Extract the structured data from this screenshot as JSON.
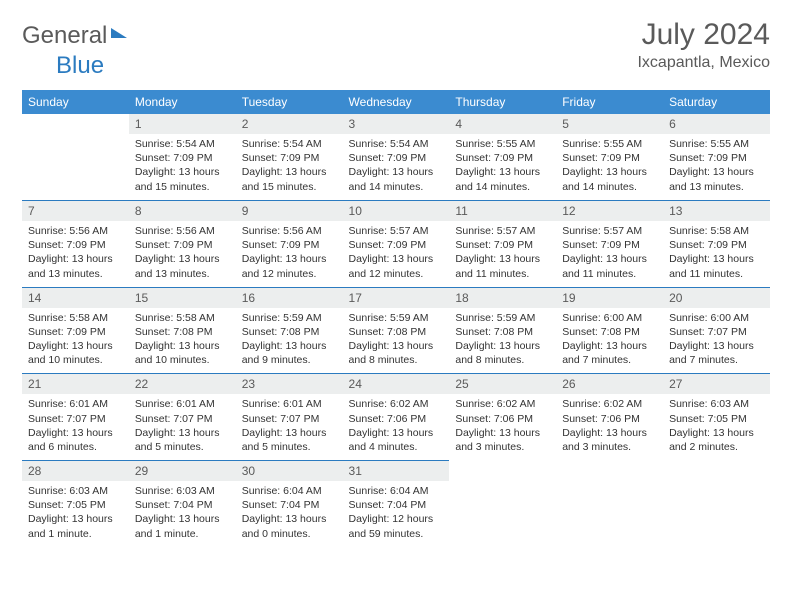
{
  "brand": {
    "name1": "General",
    "name2": "Blue"
  },
  "title": "July 2024",
  "location": "Ixcapantla, Mexico",
  "colors": {
    "header_blue": "#3b8bd0",
    "daynum_bg": "#eceeee",
    "rule_blue": "#2b7bc0",
    "text_gray": "#5a5a5a"
  },
  "daysOfWeek": [
    "Sunday",
    "Monday",
    "Tuesday",
    "Wednesday",
    "Thursday",
    "Friday",
    "Saturday"
  ],
  "weeks": [
    [
      null,
      {
        "n": "1",
        "sr": "Sunrise: 5:54 AM",
        "ss": "Sunset: 7:09 PM",
        "dl": "Daylight: 13 hours and 15 minutes."
      },
      {
        "n": "2",
        "sr": "Sunrise: 5:54 AM",
        "ss": "Sunset: 7:09 PM",
        "dl": "Daylight: 13 hours and 15 minutes."
      },
      {
        "n": "3",
        "sr": "Sunrise: 5:54 AM",
        "ss": "Sunset: 7:09 PM",
        "dl": "Daylight: 13 hours and 14 minutes."
      },
      {
        "n": "4",
        "sr": "Sunrise: 5:55 AM",
        "ss": "Sunset: 7:09 PM",
        "dl": "Daylight: 13 hours and 14 minutes."
      },
      {
        "n": "5",
        "sr": "Sunrise: 5:55 AM",
        "ss": "Sunset: 7:09 PM",
        "dl": "Daylight: 13 hours and 14 minutes."
      },
      {
        "n": "6",
        "sr": "Sunrise: 5:55 AM",
        "ss": "Sunset: 7:09 PM",
        "dl": "Daylight: 13 hours and 13 minutes."
      }
    ],
    [
      {
        "n": "7",
        "sr": "Sunrise: 5:56 AM",
        "ss": "Sunset: 7:09 PM",
        "dl": "Daylight: 13 hours and 13 minutes."
      },
      {
        "n": "8",
        "sr": "Sunrise: 5:56 AM",
        "ss": "Sunset: 7:09 PM",
        "dl": "Daylight: 13 hours and 13 minutes."
      },
      {
        "n": "9",
        "sr": "Sunrise: 5:56 AM",
        "ss": "Sunset: 7:09 PM",
        "dl": "Daylight: 13 hours and 12 minutes."
      },
      {
        "n": "10",
        "sr": "Sunrise: 5:57 AM",
        "ss": "Sunset: 7:09 PM",
        "dl": "Daylight: 13 hours and 12 minutes."
      },
      {
        "n": "11",
        "sr": "Sunrise: 5:57 AM",
        "ss": "Sunset: 7:09 PM",
        "dl": "Daylight: 13 hours and 11 minutes."
      },
      {
        "n": "12",
        "sr": "Sunrise: 5:57 AM",
        "ss": "Sunset: 7:09 PM",
        "dl": "Daylight: 13 hours and 11 minutes."
      },
      {
        "n": "13",
        "sr": "Sunrise: 5:58 AM",
        "ss": "Sunset: 7:09 PM",
        "dl": "Daylight: 13 hours and 11 minutes."
      }
    ],
    [
      {
        "n": "14",
        "sr": "Sunrise: 5:58 AM",
        "ss": "Sunset: 7:09 PM",
        "dl": "Daylight: 13 hours and 10 minutes."
      },
      {
        "n": "15",
        "sr": "Sunrise: 5:58 AM",
        "ss": "Sunset: 7:08 PM",
        "dl": "Daylight: 13 hours and 10 minutes."
      },
      {
        "n": "16",
        "sr": "Sunrise: 5:59 AM",
        "ss": "Sunset: 7:08 PM",
        "dl": "Daylight: 13 hours and 9 minutes."
      },
      {
        "n": "17",
        "sr": "Sunrise: 5:59 AM",
        "ss": "Sunset: 7:08 PM",
        "dl": "Daylight: 13 hours and 8 minutes."
      },
      {
        "n": "18",
        "sr": "Sunrise: 5:59 AM",
        "ss": "Sunset: 7:08 PM",
        "dl": "Daylight: 13 hours and 8 minutes."
      },
      {
        "n": "19",
        "sr": "Sunrise: 6:00 AM",
        "ss": "Sunset: 7:08 PM",
        "dl": "Daylight: 13 hours and 7 minutes."
      },
      {
        "n": "20",
        "sr": "Sunrise: 6:00 AM",
        "ss": "Sunset: 7:07 PM",
        "dl": "Daylight: 13 hours and 7 minutes."
      }
    ],
    [
      {
        "n": "21",
        "sr": "Sunrise: 6:01 AM",
        "ss": "Sunset: 7:07 PM",
        "dl": "Daylight: 13 hours and 6 minutes."
      },
      {
        "n": "22",
        "sr": "Sunrise: 6:01 AM",
        "ss": "Sunset: 7:07 PM",
        "dl": "Daylight: 13 hours and 5 minutes."
      },
      {
        "n": "23",
        "sr": "Sunrise: 6:01 AM",
        "ss": "Sunset: 7:07 PM",
        "dl": "Daylight: 13 hours and 5 minutes."
      },
      {
        "n": "24",
        "sr": "Sunrise: 6:02 AM",
        "ss": "Sunset: 7:06 PM",
        "dl": "Daylight: 13 hours and 4 minutes."
      },
      {
        "n": "25",
        "sr": "Sunrise: 6:02 AM",
        "ss": "Sunset: 7:06 PM",
        "dl": "Daylight: 13 hours and 3 minutes."
      },
      {
        "n": "26",
        "sr": "Sunrise: 6:02 AM",
        "ss": "Sunset: 7:06 PM",
        "dl": "Daylight: 13 hours and 3 minutes."
      },
      {
        "n": "27",
        "sr": "Sunrise: 6:03 AM",
        "ss": "Sunset: 7:05 PM",
        "dl": "Daylight: 13 hours and 2 minutes."
      }
    ],
    [
      {
        "n": "28",
        "sr": "Sunrise: 6:03 AM",
        "ss": "Sunset: 7:05 PM",
        "dl": "Daylight: 13 hours and 1 minute."
      },
      {
        "n": "29",
        "sr": "Sunrise: 6:03 AM",
        "ss": "Sunset: 7:04 PM",
        "dl": "Daylight: 13 hours and 1 minute."
      },
      {
        "n": "30",
        "sr": "Sunrise: 6:04 AM",
        "ss": "Sunset: 7:04 PM",
        "dl": "Daylight: 13 hours and 0 minutes."
      },
      {
        "n": "31",
        "sr": "Sunrise: 6:04 AM",
        "ss": "Sunset: 7:04 PM",
        "dl": "Daylight: 12 hours and 59 minutes."
      },
      null,
      null,
      null
    ]
  ]
}
